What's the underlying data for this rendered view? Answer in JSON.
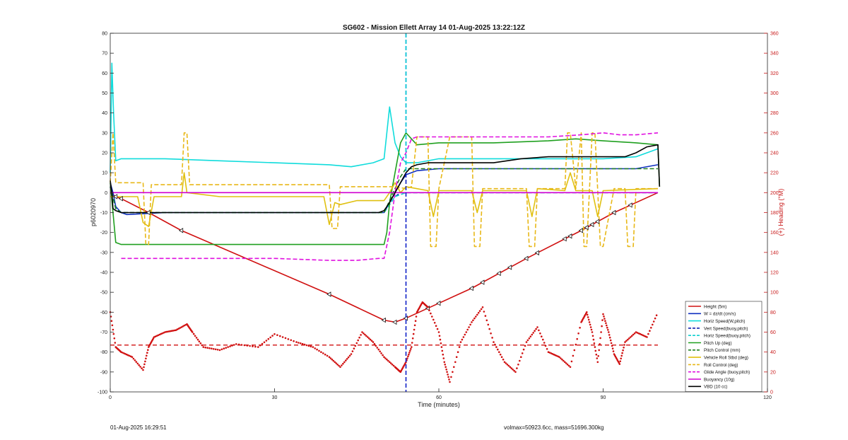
{
  "chart_data": {
    "type": "line",
    "title": "SG602 - Mission Ellett Array 14 01-Aug-2025 13:22:12Z",
    "xlabel": "Time (minutes)",
    "ylabel_left": "p6020970",
    "ylabel_right": "(+) Heading (°M)",
    "xlim": [
      0,
      120
    ],
    "ylim_left": [
      -100,
      80
    ],
    "ylim_right": [
      0,
      360
    ],
    "x_ticks": [
      0,
      30,
      60,
      90,
      120
    ],
    "y_left_ticks": [
      -100,
      -90,
      -80,
      -70,
      -60,
      -50,
      -40,
      -30,
      -20,
      -10,
      0,
      10,
      20,
      30,
      40,
      50,
      60,
      70,
      80
    ],
    "y_right_ticks": [
      0,
      20,
      40,
      60,
      80,
      100,
      120,
      140,
      160,
      180,
      200,
      220,
      240,
      260,
      280,
      300,
      320,
      340,
      360
    ],
    "grid": false,
    "legend_position": "bottom-right",
    "apogee_minutes": 54.0,
    "series": [
      {
        "name": "Height (5m)",
        "color": "#d01010",
        "style": "solid",
        "x": [
          0,
          1,
          2,
          7,
          13,
          40,
          50,
          52,
          54,
          58,
          66,
          76,
          86,
          92,
          100
        ],
        "y": [
          0,
          -2,
          -3,
          -10,
          -19,
          -51,
          -64,
          -65,
          -63,
          -58,
          -48,
          -33,
          -19,
          -10,
          0
        ]
      },
      {
        "name": "W = dz/dt (cm/s)",
        "color": "#1030c0",
        "style": "solid",
        "x": [
          0,
          0.5,
          1,
          2,
          3,
          10,
          20,
          30,
          40,
          45,
          50,
          51,
          52,
          53,
          54,
          56,
          60,
          70,
          80,
          90,
          96,
          100
        ],
        "y": [
          5,
          0,
          -7,
          -10,
          -11,
          -10,
          -10,
          -10,
          -10,
          -10,
          -10,
          -5,
          0,
          5,
          9,
          11,
          12,
          12,
          12,
          12,
          12,
          14
        ]
      },
      {
        "name": "Horiz Speed(W,pitch)",
        "color": "#10dcdc",
        "style": "solid",
        "x": [
          0,
          0.3,
          0.6,
          1,
          2,
          5,
          10,
          20,
          30,
          40,
          44,
          48,
          50,
          50.5,
          51,
          52,
          53,
          54,
          56,
          60,
          70,
          80,
          90,
          96,
          100
        ],
        "y": [
          10,
          65,
          40,
          16,
          17,
          17,
          17,
          16,
          15,
          14,
          13,
          15,
          17,
          30,
          43,
          25,
          18,
          15,
          15,
          17,
          17,
          17,
          17,
          18,
          22
        ]
      },
      {
        "name": "Vert Speed(buoy,pitch)",
        "color": "#1020b0",
        "style": "dashed",
        "x": [
          0,
          1,
          2,
          10,
          30,
          50,
          51,
          52,
          53,
          54,
          56,
          100
        ],
        "y": [
          3,
          -8,
          -10,
          -10,
          -10,
          -10,
          -6,
          -2,
          0,
          0,
          0,
          0
        ]
      },
      {
        "name": "Horiz Speed(buoy,pitch)",
        "color": "#10d0d0",
        "style": "dashed",
        "x": [
          0,
          1,
          2,
          10,
          30,
          50,
          52,
          54,
          56,
          100
        ],
        "y": [
          3,
          -8,
          -10,
          -10,
          -10,
          -10,
          -2,
          0,
          0,
          0
        ]
      },
      {
        "name": "Pitch Up (deg)",
        "color": "#20a020",
        "style": "solid",
        "x": [
          0,
          0.5,
          1,
          2,
          10,
          20,
          30,
          40,
          45,
          50,
          50.5,
          51,
          52,
          53,
          54,
          56,
          60,
          70,
          80,
          85,
          90,
          96,
          100,
          100.3
        ],
        "y": [
          5,
          -10,
          -25,
          -26,
          -26,
          -26,
          -26,
          -26,
          -26,
          -26,
          -20,
          -5,
          10,
          25,
          30,
          24,
          25,
          25,
          26,
          27,
          26,
          25,
          24,
          3
        ]
      },
      {
        "name": "Pitch Control (mm)",
        "color": "#208020",
        "style": "dashed",
        "x": [
          0,
          1,
          2,
          10,
          30,
          50,
          51,
          52,
          53,
          54,
          56,
          100
        ],
        "y": [
          3,
          -8,
          -10,
          -10,
          -10,
          -10,
          -4,
          2,
          8,
          12,
          12,
          12
        ]
      },
      {
        "name": "Vehicle Roll Stbd (deg)",
        "color": "#e0c010",
        "style": "solid",
        "x": [
          0,
          1,
          5,
          6,
          7,
          8,
          13,
          13.5,
          14,
          20,
          30,
          39,
          40,
          41,
          42,
          45,
          50,
          51,
          52,
          53,
          54,
          56,
          58,
          59,
          60,
          66,
          67,
          68,
          76,
          77,
          78,
          83,
          84,
          85,
          88,
          89,
          90,
          100
        ],
        "y": [
          -2,
          -2,
          -2,
          -15,
          -17,
          -2,
          -2,
          10,
          0,
          -2,
          -2,
          -2,
          -16,
          -5,
          -6,
          -4,
          -4,
          0,
          5,
          0,
          3,
          2,
          1,
          -12,
          1,
          1,
          -10,
          1,
          1,
          -12,
          2,
          1,
          10,
          1,
          1,
          -12,
          1,
          2
        ]
      },
      {
        "name": "Roll Control (deg)",
        "color": "#e8b818",
        "style": "dashed",
        "x": [
          0,
          0.5,
          1,
          1.5,
          2,
          6,
          6.5,
          7,
          7.5,
          13,
          13.5,
          14,
          14.5,
          40,
          40.5,
          41.5,
          42,
          45,
          50,
          52,
          54,
          55,
          56,
          58,
          58.5,
          59.5,
          60,
          62,
          66,
          66.5,
          67.5,
          68,
          70,
          76,
          76.5,
          77.5,
          78,
          83,
          83.5,
          84,
          85,
          86,
          86.5,
          87,
          88,
          88.5,
          89.5,
          90,
          92,
          94,
          94.5,
          95.5,
          96,
          100
        ],
        "y": [
          5,
          30,
          5,
          5,
          5,
          5,
          -26,
          -26,
          4,
          4,
          30,
          30,
          4,
          4,
          -18,
          -18,
          3,
          3,
          3,
          3,
          2,
          3,
          28,
          28,
          -27,
          -27,
          2,
          28,
          28,
          -27,
          -27,
          2,
          2,
          2,
          -27,
          -27,
          2,
          2,
          30,
          30,
          2,
          30,
          -27,
          -27,
          30,
          30,
          -27,
          -27,
          2,
          2,
          -27,
          -27,
          2,
          2
        ]
      },
      {
        "name": "Glide Angle (buoy,pitch)",
        "color": "#e010e0",
        "style": "dashed",
        "x": [
          2,
          5,
          10,
          20,
          30,
          40,
          45,
          49,
          50,
          51,
          52,
          53,
          54,
          55,
          56,
          60,
          65,
          70,
          80,
          86,
          90,
          93,
          96,
          100
        ],
        "y": [
          -33,
          -33,
          -33,
          -33,
          -33,
          -34,
          -34,
          -33,
          -33,
          -20,
          0,
          15,
          20,
          27,
          28,
          28,
          28,
          28,
          28,
          29,
          30,
          29,
          29,
          30
        ]
      },
      {
        "name": "Buoyancy (10g)",
        "color": "#d000d0",
        "style": "solid",
        "x": [
          0,
          100
        ],
        "y": [
          0,
          0
        ]
      },
      {
        "name": "VBD (10 cc)",
        "color": "#000000",
        "style": "solid",
        "x": [
          0,
          0.3,
          0.5,
          1,
          2,
          5,
          10,
          20,
          30,
          40,
          45,
          49,
          50,
          51,
          52,
          53,
          54,
          55,
          56,
          58,
          60,
          70,
          75,
          80,
          90,
          94,
          96,
          98,
          100,
          100.3
        ],
        "y": [
          6,
          0,
          -8,
          -9,
          -10,
          -10,
          -10,
          -10,
          -10,
          -10,
          -10,
          -10,
          -9,
          -5,
          0,
          5,
          10,
          13,
          14,
          15,
          15,
          15,
          17,
          18,
          18,
          18,
          20,
          23,
          24,
          3
        ]
      }
    ],
    "heading": {
      "name": "Heading",
      "color": "#d01010",
      "axis": "right",
      "mean": 47,
      "x": [
        0,
        1,
        2,
        4,
        6,
        7,
        8,
        10,
        12,
        14,
        15,
        17,
        20,
        23,
        27,
        30,
        34,
        37,
        40,
        42,
        44,
        46,
        48,
        50,
        52,
        53,
        54,
        55,
        56,
        57,
        58,
        60,
        61,
        62,
        64,
        66,
        68,
        70,
        72,
        74,
        76,
        78,
        80,
        82,
        84,
        86,
        87,
        88,
        89,
        90,
        91,
        92,
        93,
        94,
        96,
        98,
        100
      ],
      "y": [
        80,
        45,
        40,
        35,
        22,
        45,
        55,
        60,
        62,
        68,
        60,
        45,
        42,
        48,
        45,
        58,
        50,
        45,
        35,
        25,
        38,
        60,
        50,
        35,
        25,
        20,
        30,
        45,
        80,
        90,
        85,
        60,
        30,
        10,
        50,
        70,
        85,
        50,
        30,
        20,
        50,
        65,
        40,
        35,
        25,
        70,
        80,
        60,
        30,
        78,
        60,
        38,
        28,
        50,
        60,
        55,
        80
      ]
    }
  },
  "footer": {
    "left": "01-Aug-2025 16:29:51",
    "right": "volmax=50923.6cc, mass=51696.300kg"
  }
}
